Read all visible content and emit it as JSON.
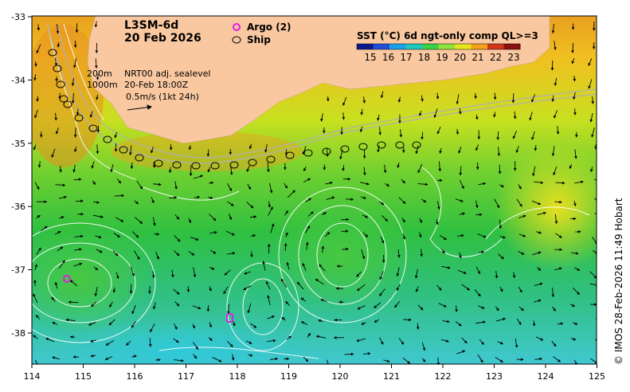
{
  "map": {
    "product": "L3SM-6d",
    "date": "20 Feb 2026",
    "legend_argo": "Argo (2)",
    "legend_ship": "Ship",
    "colorbar": {
      "title": "SST (°C) 6d ngt-only comp QL>=3",
      "ticks": [
        "15",
        "16",
        "17",
        "18",
        "19",
        "20",
        "21",
        "22",
        "23"
      ],
      "colors": [
        "#0a1a8c",
        "#1f4fd6",
        "#1aa0e6",
        "#20c8c0",
        "#3ad24a",
        "#8ee23a",
        "#e8e61e",
        "#f4a21a",
        "#d2341a",
        "#8c1010"
      ]
    },
    "note_depths": "200m\n1000m",
    "note_product": "NRT00 adj. sealevel",
    "note_time": "20-Feb 18:00Z",
    "note_scale": "0.5m/s (1kt 24h)",
    "credit": "© IMOS 28-Feb-2026 11:49 Hobart",
    "lon_labels": [
      "114",
      "115",
      "116",
      "117",
      "118",
      "119",
      "120",
      "121",
      "122",
      "123",
      "124",
      "125"
    ],
    "lat_labels": [
      "-33",
      "-34",
      "-35",
      "-36",
      "-37",
      "-38"
    ],
    "colors": {
      "land": "#f9c8a0",
      "argo_marker": "#e020e0",
      "ship_marker": "#000000"
    }
  }
}
